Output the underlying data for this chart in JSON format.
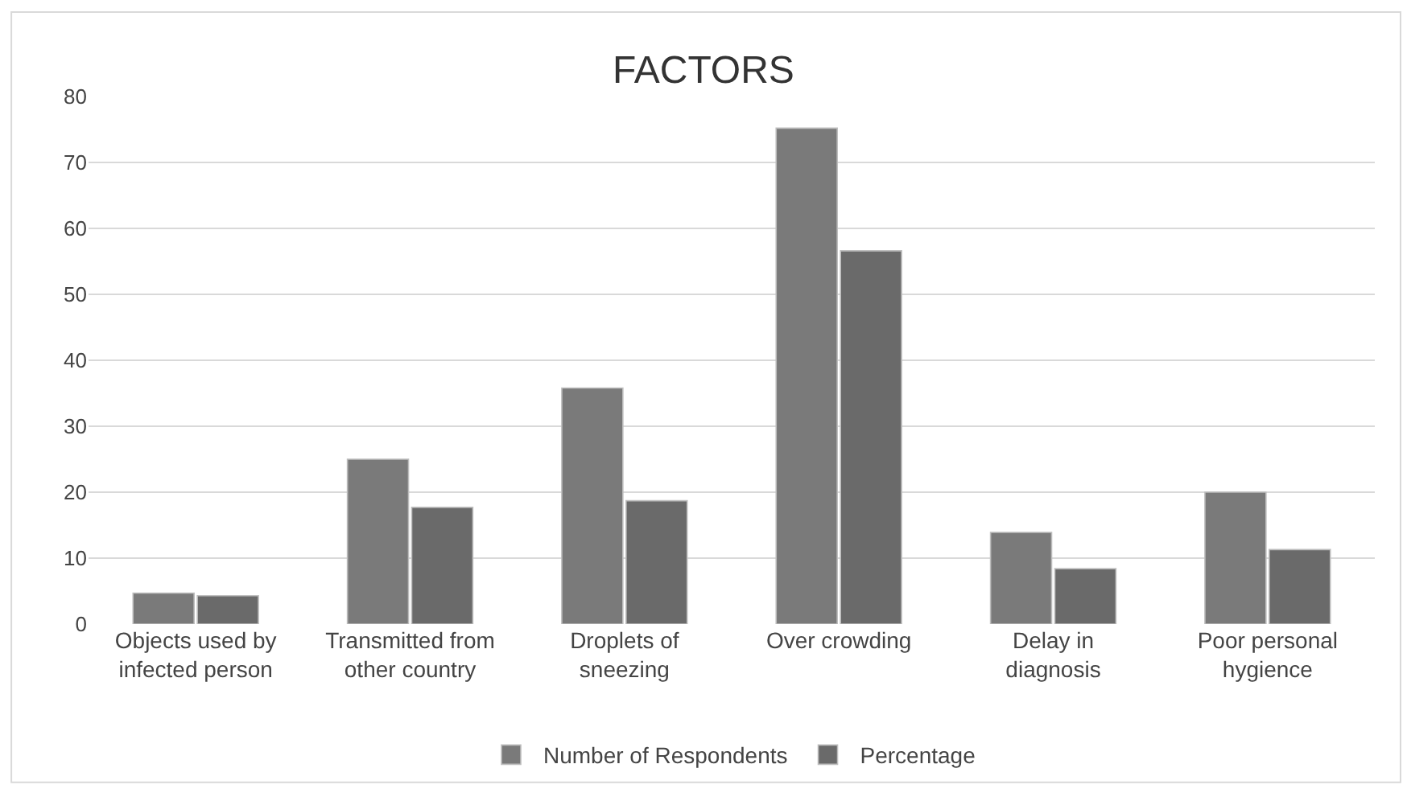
{
  "chart_data": {
    "type": "bar",
    "title": "FACTORS",
    "categories": [
      "Objects used by infected person",
      "Transmitted from other country",
      "Droplets of sneezing",
      "Over crowding",
      "Delay in diagnosis",
      "Poor personal hygience"
    ],
    "series": [
      {
        "name": "Number of Respondents",
        "color": "#7a7a7a",
        "values": [
          4.7,
          25,
          35.8,
          75.2,
          13.9,
          20
        ]
      },
      {
        "name": "Percentage",
        "color": "#6a6a6a",
        "values": [
          4.3,
          17.7,
          18.7,
          56.6,
          8.4,
          11.3
        ]
      }
    ],
    "ylim": [
      0,
      80
    ],
    "yticks": [
      0,
      10,
      20,
      30,
      40,
      50,
      60,
      70,
      80
    ],
    "grid": "y",
    "legend": "bottom"
  }
}
